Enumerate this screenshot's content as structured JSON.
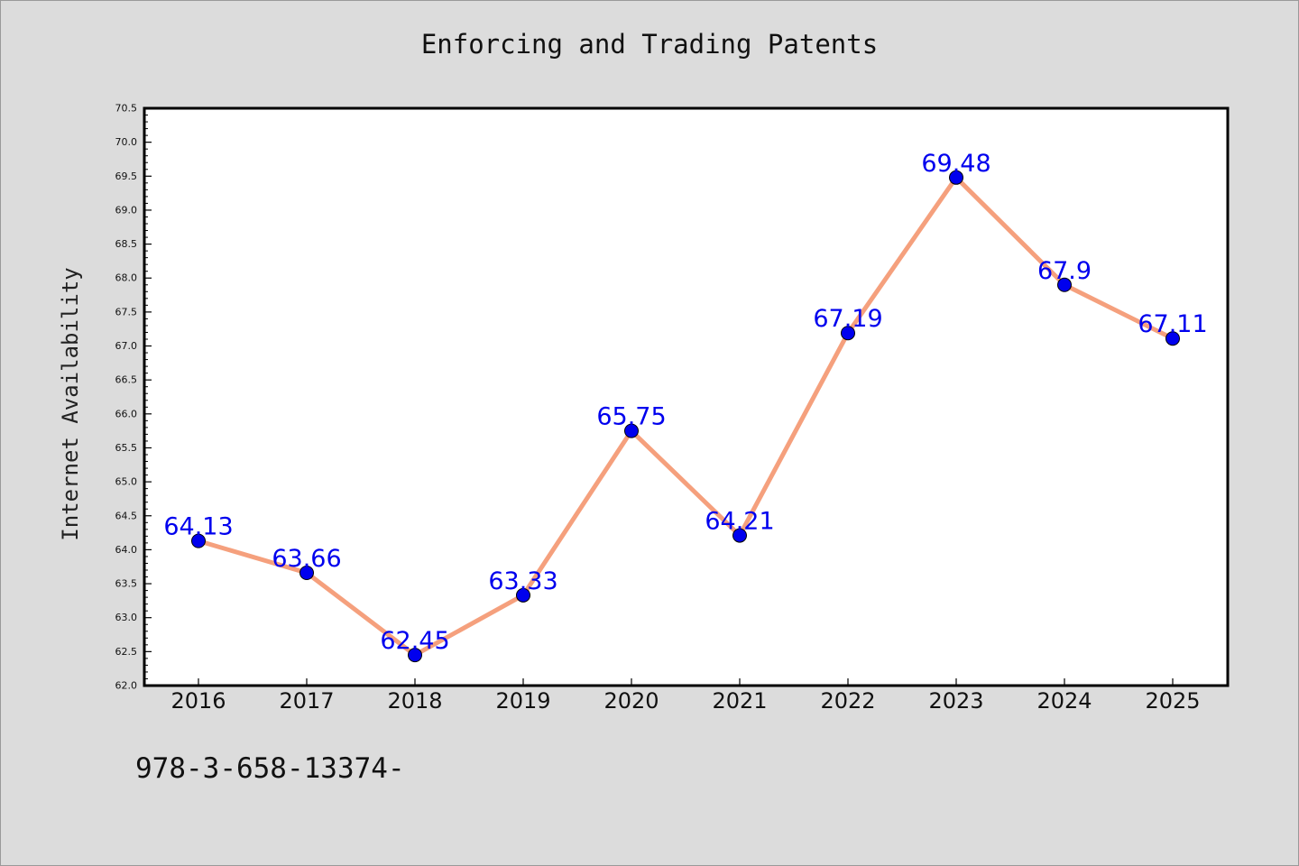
{
  "title": "Enforcing and Trading Patents",
  "footnote": "978-3-658-13374-",
  "chart_data": {
    "type": "line",
    "title": "Enforcing and Trading Patents",
    "xlabel": "",
    "ylabel": "Internet Availability",
    "categories": [
      "2016",
      "2017",
      "2018",
      "2019",
      "2020",
      "2021",
      "2022",
      "2023",
      "2024",
      "2025"
    ],
    "series": [
      {
        "values": [
          64.13,
          63.66,
          62.45,
          63.33,
          65.75,
          64.21,
          67.19,
          69.48,
          67.9,
          67.11
        ],
        "data_labels": [
          "64.13",
          "63.66",
          "62.45",
          "63.33",
          "65.75",
          "64.21",
          "67.19",
          "69.48",
          "67.9",
          "67.11"
        ]
      }
    ],
    "ylim": [
      62.0,
      70.5
    ],
    "yticks": [
      "62.0",
      "62.5",
      "63.0",
      "63.5",
      "64.0",
      "64.5",
      "65.0",
      "65.5",
      "66.0",
      "66.5",
      "67.0",
      "67.5",
      "68.0",
      "68.5",
      "69.0",
      "69.5",
      "70.0",
      "70.5"
    ],
    "grid": false,
    "legend": "none",
    "colors": {
      "line": "#f5a07d",
      "marker": "#0000ee",
      "data_label": "#0000ee",
      "plot_background": "#ffffff",
      "page_background": "#dcdcdc"
    }
  }
}
